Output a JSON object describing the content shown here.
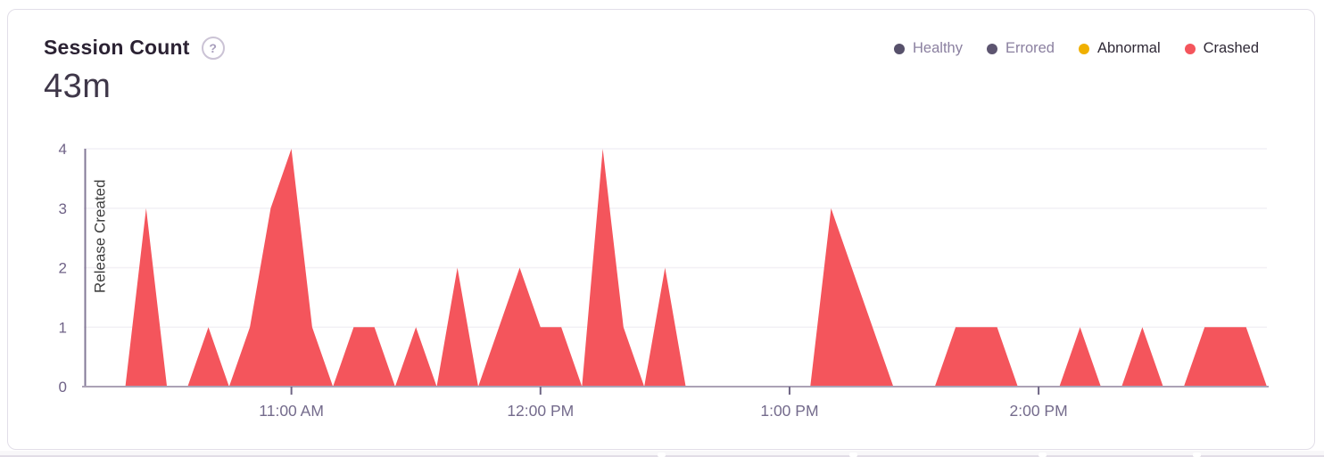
{
  "card": {
    "title": "Session Count",
    "help_icon": "?",
    "total": "43m",
    "legend": [
      {
        "label": "Healthy",
        "dot_color": "#57516B",
        "label_color": "#8B80A0"
      },
      {
        "label": "Errored",
        "dot_color": "#5D5570",
        "label_color": "#8B80A0"
      },
      {
        "label": "Abnormal",
        "dot_color": "#F0B000",
        "label_color": "#2F2936"
      },
      {
        "label": "Crashed",
        "dot_color": "#F4555C",
        "label_color": "#2F2936"
      }
    ]
  },
  "chart_data": {
    "type": "area",
    "title": "Session Count",
    "xlabel": "",
    "ylabel": "",
    "x_ticks": [
      "11:00 AM",
      "12:00 PM",
      "1:00 PM",
      "2:00 PM"
    ],
    "x_tick_indices": [
      10,
      22,
      34,
      46
    ],
    "y_ticks": [
      0,
      1,
      2,
      3,
      4
    ],
    "ylim": [
      0,
      4
    ],
    "x_range": [
      "10:10 AM",
      "2:55 PM"
    ],
    "bucket_minutes": 5,
    "grid": "horizontal",
    "legend_position": "top-right",
    "annotation": {
      "type": "vertical-line",
      "label": "Release Created",
      "time": "10:10 AM",
      "x_index": 0
    },
    "times": [
      "10:10 AM",
      "10:15 AM",
      "10:20 AM",
      "10:25 AM",
      "10:30 AM",
      "10:35 AM",
      "10:40 AM",
      "10:45 AM",
      "10:50 AM",
      "10:55 AM",
      "11:00 AM",
      "11:05 AM",
      "11:10 AM",
      "11:15 AM",
      "11:20 AM",
      "11:25 AM",
      "11:30 AM",
      "11:35 AM",
      "11:40 AM",
      "11:45 AM",
      "11:50 AM",
      "11:55 AM",
      "12:00 PM",
      "12:05 PM",
      "12:10 PM",
      "12:15 PM",
      "12:20 PM",
      "12:25 PM",
      "12:30 PM",
      "12:35 PM",
      "12:40 PM",
      "12:45 PM",
      "12:50 PM",
      "12:55 PM",
      "1:00 PM",
      "1:05 PM",
      "1:10 PM",
      "1:15 PM",
      "1:20 PM",
      "1:25 PM",
      "1:30 PM",
      "1:35 PM",
      "1:40 PM",
      "1:45 PM",
      "1:50 PM",
      "1:55 PM",
      "2:00 PM",
      "2:05 PM",
      "2:10 PM",
      "2:15 PM",
      "2:20 PM",
      "2:25 PM",
      "2:30 PM",
      "2:35 PM",
      "2:40 PM",
      "2:45 PM",
      "2:50 PM",
      "2:55 PM"
    ],
    "series": [
      {
        "name": "Crashed",
        "color": "#F4555C",
        "values": [
          0,
          0,
          0,
          3,
          0,
          0,
          1,
          0,
          1,
          3,
          4,
          1,
          0,
          1,
          1,
          0,
          1,
          0,
          2,
          0,
          1,
          2,
          1,
          1,
          0,
          4,
          1,
          0,
          2,
          0,
          0,
          0,
          0,
          0,
          0,
          0,
          3,
          2,
          1,
          0,
          0,
          0,
          1,
          1,
          1,
          0,
          0,
          0,
          1,
          0,
          0,
          1,
          0,
          0,
          1,
          1,
          1,
          0
        ]
      }
    ]
  },
  "colors": {
    "card_border": "#E2DEE8",
    "axis_line": "#ABA2B6",
    "gridline": "#F2F0F5",
    "tick_text": "#6F6287",
    "release_line": "#837897"
  }
}
